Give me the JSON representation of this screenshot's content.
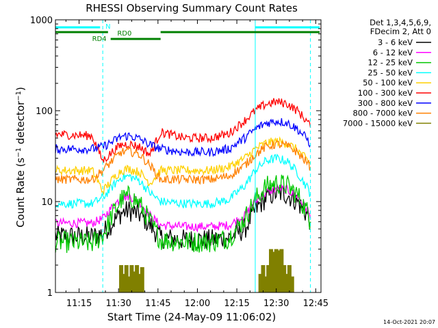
{
  "chart_data": {
    "type": "line",
    "title": "RHESSI Observing Summary Count Rates",
    "xlabel": "Start Time (24-May-09 11:06:02)",
    "ylabel": "Count Rate (s^-1 detector^-1)",
    "ylabel_main": "Count Rate (s",
    "ylabel_sup1": "−1",
    "ylabel_mid": " detector",
    "ylabel_sup2": "−1",
    "ylabel_end": ")",
    "yscale": "log",
    "xlim": [
      "11:06",
      "12:47"
    ],
    "ylim": [
      1,
      1000
    ],
    "x_ticks": [
      "11:15",
      "11:30",
      "11:45",
      "12:00",
      "12:15",
      "12:30",
      "12:45"
    ],
    "y_ticks": [
      "1",
      "10",
      "100",
      "1000"
    ],
    "legend_header": [
      "Det 1,3,4,5,6,9,",
      "FDecim 2, Att 0"
    ],
    "legend_placement": "right",
    "series": [
      {
        "name": "3 - 6 keV",
        "color": "#000000",
        "x": [
          "11:06",
          "11:20",
          "11:24",
          "11:28",
          "11:31",
          "11:34",
          "11:38",
          "11:42",
          "11:46",
          "11:55",
          "12:05",
          "12:12",
          "12:18",
          "12:22",
          "12:26",
          "12:30",
          "12:34",
          "12:38",
          "12:42",
          "12:43"
        ],
        "y": [
          4.2,
          4.1,
          4.5,
          6.0,
          7.5,
          8.0,
          7.2,
          5.5,
          4.0,
          3.8,
          3.8,
          4.0,
          5.0,
          8.0,
          11.0,
          12.5,
          12.0,
          10.0,
          7.0,
          6.0
        ]
      },
      {
        "name": "6 - 12 keV",
        "color": "#ff00ff",
        "x": [
          "11:06",
          "11:20",
          "11:24",
          "11:28",
          "11:31",
          "11:34",
          "11:38",
          "11:42",
          "11:46",
          "11:55",
          "12:05",
          "12:12",
          "12:18",
          "12:22",
          "12:26",
          "12:30",
          "12:34",
          "12:38",
          "12:42",
          "12:43"
        ],
        "y": [
          5.8,
          5.8,
          6.5,
          9.0,
          11.0,
          11.5,
          10.0,
          7.0,
          5.5,
          5.3,
          5.3,
          5.5,
          7.0,
          10.0,
          12.5,
          14.0,
          13.5,
          11.5,
          8.0,
          6.5
        ]
      },
      {
        "name": "12 - 25 keV",
        "color": "#00c800",
        "x": [
          "11:06",
          "11:20",
          "11:24",
          "11:28",
          "11:31",
          "11:34",
          "11:38",
          "11:42",
          "11:46",
          "11:55",
          "12:05",
          "12:12",
          "12:18",
          "12:22",
          "12:26",
          "12:30",
          "12:34",
          "12:38",
          "12:42",
          "12:43"
        ],
        "y": [
          3.6,
          3.5,
          4.2,
          7.5,
          10.5,
          11.5,
          9.5,
          6.0,
          3.8,
          3.6,
          3.6,
          4.0,
          6.5,
          10.5,
          14.5,
          16.0,
          15.0,
          12.0,
          7.5,
          6.0
        ]
      },
      {
        "name": "25 - 50 keV",
        "color": "#00ffff",
        "x": [
          "11:06",
          "11:20",
          "11:24",
          "11:28",
          "11:31",
          "11:34",
          "11:38",
          "11:42",
          "11:46",
          "11:55",
          "12:05",
          "12:12",
          "12:18",
          "12:22",
          "12:26",
          "12:30",
          "12:34",
          "12:38",
          "12:42",
          "12:43"
        ],
        "y": [
          9.5,
          9.5,
          11.0,
          15.0,
          18.5,
          19.0,
          17.0,
          12.5,
          10.0,
          9.5,
          9.5,
          10.5,
          15.0,
          22.0,
          28.0,
          30.0,
          28.0,
          21.0,
          14.0,
          12.0
        ]
      },
      {
        "name": "50 - 100 keV",
        "color": "#ffd000",
        "x": [
          "11:06",
          "11:20",
          "11:24",
          "11:28",
          "11:31",
          "11:34",
          "11:38",
          "11:42",
          "11:46",
          "11:55",
          "12:05",
          "12:12",
          "12:18",
          "12:22",
          "12:26",
          "12:30",
          "12:34",
          "12:38",
          "12:42",
          "12:43"
        ],
        "y": [
          22.0,
          22.0,
          13.0,
          18.0,
          22.0,
          23.0,
          21.0,
          16.0,
          22.0,
          22.0,
          22.0,
          24.0,
          30.0,
          38.0,
          44.0,
          46.0,
          44.0,
          37.0,
          28.0,
          26.0
        ]
      },
      {
        "name": "100 - 300 keV",
        "color": "#ff0000",
        "x": [
          "11:06",
          "11:20",
          "11:24",
          "11:28",
          "11:31",
          "11:34",
          "11:38",
          "11:42",
          "11:46",
          "11:55",
          "12:05",
          "12:12",
          "12:18",
          "12:22",
          "12:26",
          "12:30",
          "12:34",
          "12:38",
          "12:42",
          "12:43"
        ],
        "y": [
          55.0,
          53.0,
          28.0,
          36.0,
          42.0,
          43.0,
          40.0,
          33.0,
          58.0,
          50.0,
          50.0,
          56.0,
          78.0,
          100.0,
          118.0,
          125.0,
          120.0,
          100.0,
          75.0,
          65.0
        ]
      },
      {
        "name": "300 - 800 keV",
        "color": "#0000ff",
        "x": [
          "11:06",
          "11:20",
          "11:24",
          "11:28",
          "11:31",
          "11:34",
          "11:38",
          "11:42",
          "11:46",
          "11:55",
          "12:05",
          "12:12",
          "12:18",
          "12:22",
          "12:26",
          "12:30",
          "12:34",
          "12:38",
          "12:42",
          "12:43"
        ],
        "y": [
          38.0,
          38.0,
          40.0,
          46.0,
          52.0,
          53.0,
          49.0,
          42.0,
          38.0,
          35.0,
          35.0,
          38.0,
          50.0,
          63.0,
          73.0,
          77.0,
          74.0,
          63.0,
          48.0,
          42.0
        ]
      },
      {
        "name": "800 - 7000 keV",
        "color": "#ff8000",
        "x": [
          "11:06",
          "11:20",
          "11:24",
          "11:28",
          "11:31",
          "11:34",
          "11:38",
          "11:42",
          "11:46",
          "11:55",
          "12:05",
          "12:12",
          "12:18",
          "12:22",
          "12:26",
          "12:30",
          "12:34",
          "12:38",
          "12:42",
          "12:43"
        ],
        "y": [
          17.5,
          17.5,
          22.0,
          29.0,
          35.0,
          36.0,
          33.0,
          25.0,
          17.5,
          17.5,
          17.5,
          19.0,
          25.0,
          33.0,
          40.0,
          43.0,
          41.0,
          35.0,
          26.0,
          24.0
        ]
      },
      {
        "name": "7000 - 15000 keV",
        "color": "#808000",
        "x": [
          "11:31",
          "11:32",
          "11:33",
          "11:34",
          "11:35",
          "11:36",
          "11:37",
          "11:38",
          "11:39",
          "12:24",
          "12:25",
          "12:26",
          "12:27",
          "12:28",
          "12:29",
          "12:30",
          "12:31",
          "12:32",
          "12:33",
          "12:34",
          "12:35",
          "12:36"
        ],
        "y": [
          2.0,
          1.6,
          2.0,
          1.5,
          2.0,
          1.7,
          2.0,
          1.6,
          1.9,
          1.6,
          2.0,
          1.5,
          2.0,
          3.0,
          2.8,
          3.0,
          2.9,
          3.0,
          2.0,
          1.6,
          2.0,
          1.5
        ]
      }
    ],
    "annotations": [
      {
        "text": "N",
        "color": "#00ffff"
      },
      {
        "text": "RD0",
        "color": "#008000"
      },
      {
        "text": "RD4",
        "color": "#008000"
      }
    ],
    "timestamp": "14-Oct-2021 20:07"
  }
}
